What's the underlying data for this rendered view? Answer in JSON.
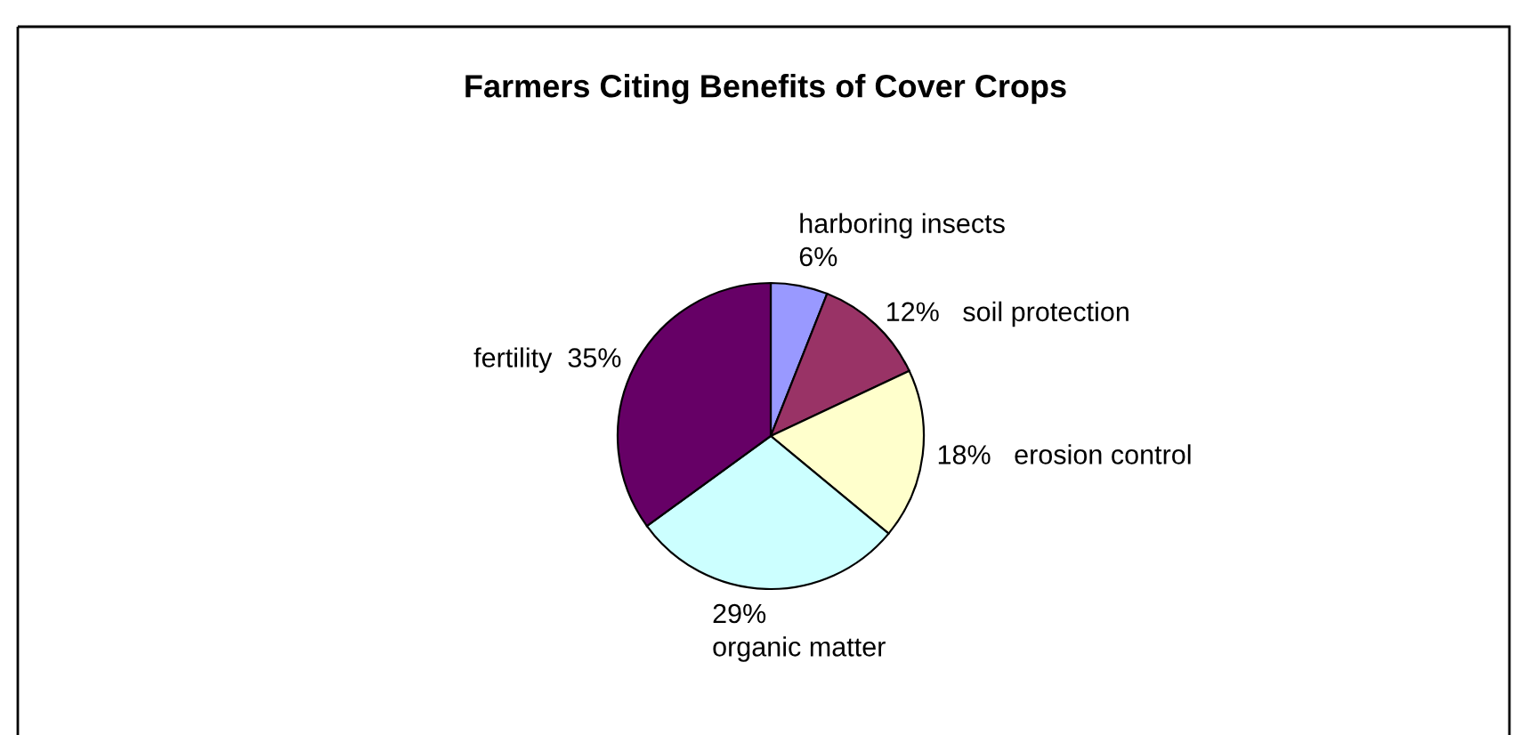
{
  "chart_data": {
    "type": "pie",
    "title": "Farmers Citing Benefits of Cover Crops",
    "categories": [
      "harboring insects",
      "soil protection",
      "erosion control",
      "organic matter",
      "fertility"
    ],
    "values": [
      6,
      12,
      18,
      29,
      35
    ],
    "colors": [
      "#9999ff",
      "#993366",
      "#ffffcc",
      "#ccffff",
      "#660066"
    ],
    "value_labels": [
      "6%",
      "12%",
      "18%",
      "29%",
      "35%"
    ]
  }
}
